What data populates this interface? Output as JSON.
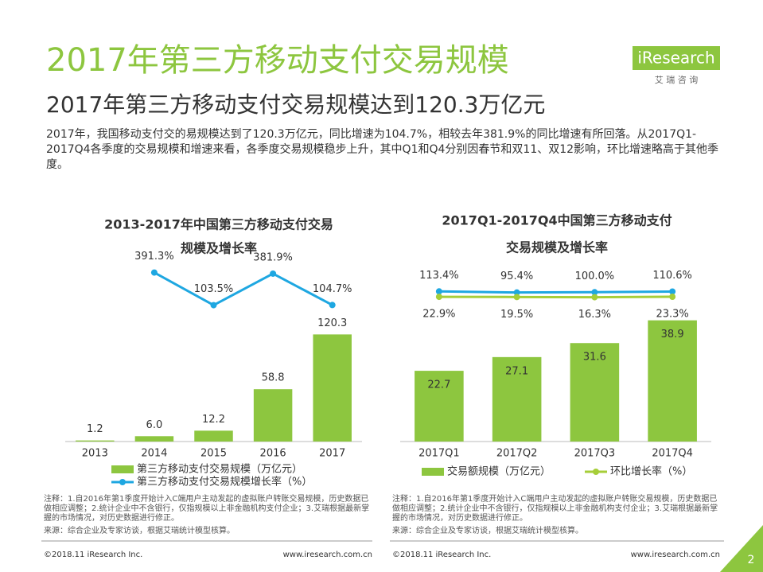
{
  "header": {
    "title": "2017年第三方移动支付交易规模",
    "subtitle": "2017年第三方移动支付交易规模达到120.3万亿元",
    "body": "2017年，我国移动支付交的易规模达到了120.3万亿元，同比增速为104.7%，相较去年381.9%的同比增速有所回落。从2017Q1-2017Q4各季度的交易规模和增速来看，各季度交易规模稳步上升，其中Q1和Q4分别因春节和双11、双12影响，环比增速略高于其他季度。"
  },
  "logo": {
    "name": "iResearch",
    "sub": "艾 瑞 咨 询"
  },
  "chart_data": [
    {
      "type": "bar",
      "title": [
        "2013-2017年中国第三方移动支付交易",
        "规模及增长率"
      ],
      "categories": [
        "2013",
        "2014",
        "2015",
        "2016",
        "2017"
      ],
      "ylim": [
        0,
        210
      ],
      "y2lim": [
        -1100,
        550
      ],
      "series": [
        {
          "name": "第三方移动支付交易规模（万亿元）",
          "type": "bar",
          "color": "#8dc63f",
          "values": [
            1.2,
            6.0,
            12.2,
            58.8,
            120.3
          ],
          "value_labels": [
            "1.2",
            "6.0",
            "12.2",
            "58.8",
            "120.3"
          ]
        },
        {
          "name": "第三方移动支付交易规模增长率（%）",
          "type": "line",
          "axis": "y2",
          "color": "#1ea7e1",
          "values": [
            null,
            391.3,
            103.5,
            381.9,
            104.7
          ],
          "value_labels": [
            null,
            "391.3%",
            "103.5%",
            "381.9%",
            "104.7%"
          ]
        }
      ],
      "note": "注释：1.自2016年第1季度开始计入C端用户主动发起的虚拟账户转账交易规模，历史数据已做相应调整；2.统计企业中不含银行，仅指规模以上非金融机构支付企业；3.艾瑞根据最新掌握的市场情况，对历史数据进行修正。",
      "source": "来源：综合企业及专家访谈，根据艾瑞统计模型核算。"
    },
    {
      "type": "bar",
      "title": [
        "2017Q1-2017Q4中国第三方移动支付",
        "交易规模及增长率"
      ],
      "categories": [
        "2017Q1",
        "2017Q2",
        "2017Q3",
        "2017Q4"
      ],
      "ylim": [
        0,
        60
      ],
      "y2lim": [
        -2400,
        730
      ],
      "series": [
        {
          "name": "交易额规模（万亿元）",
          "type": "bar",
          "color": "#8dc63f",
          "values": [
            22.7,
            27.1,
            31.6,
            38.9
          ]
        },
        {
          "type": "line",
          "axis": "y2",
          "color": "#1ea7e1",
          "values": [
            113.4,
            95.4,
            100.0,
            110.6
          ],
          "value_labels": [
            "113.4%",
            "95.4%",
            "100.0%",
            "110.6%"
          ]
        },
        {
          "name": "环比增长率（%）",
          "type": "line",
          "axis": "y2",
          "color": "#a6ce39",
          "values": [
            22.9,
            19.5,
            16.3,
            23.3
          ],
          "value_labels": [
            "22.9%",
            "19.5%",
            "16.3%",
            "23.3%"
          ]
        }
      ],
      "note": "注释：1.自2016年第1季度开始计入C端用户主动发起的虚拟账户转账交易规模，历史数据已做相应调整；2.统计企业中不含银行，仅指规模以上非金融机构支付企业；3.艾瑞根据最新掌握的市场情况，对历史数据进行修正。",
      "source": "来源：综合企业及专家访谈，根据艾瑞统计模型核算。"
    }
  ],
  "footer": {
    "copyright": "©2018.11 iResearch Inc.",
    "url": "www.iresearch.com.cn",
    "page": "2"
  }
}
